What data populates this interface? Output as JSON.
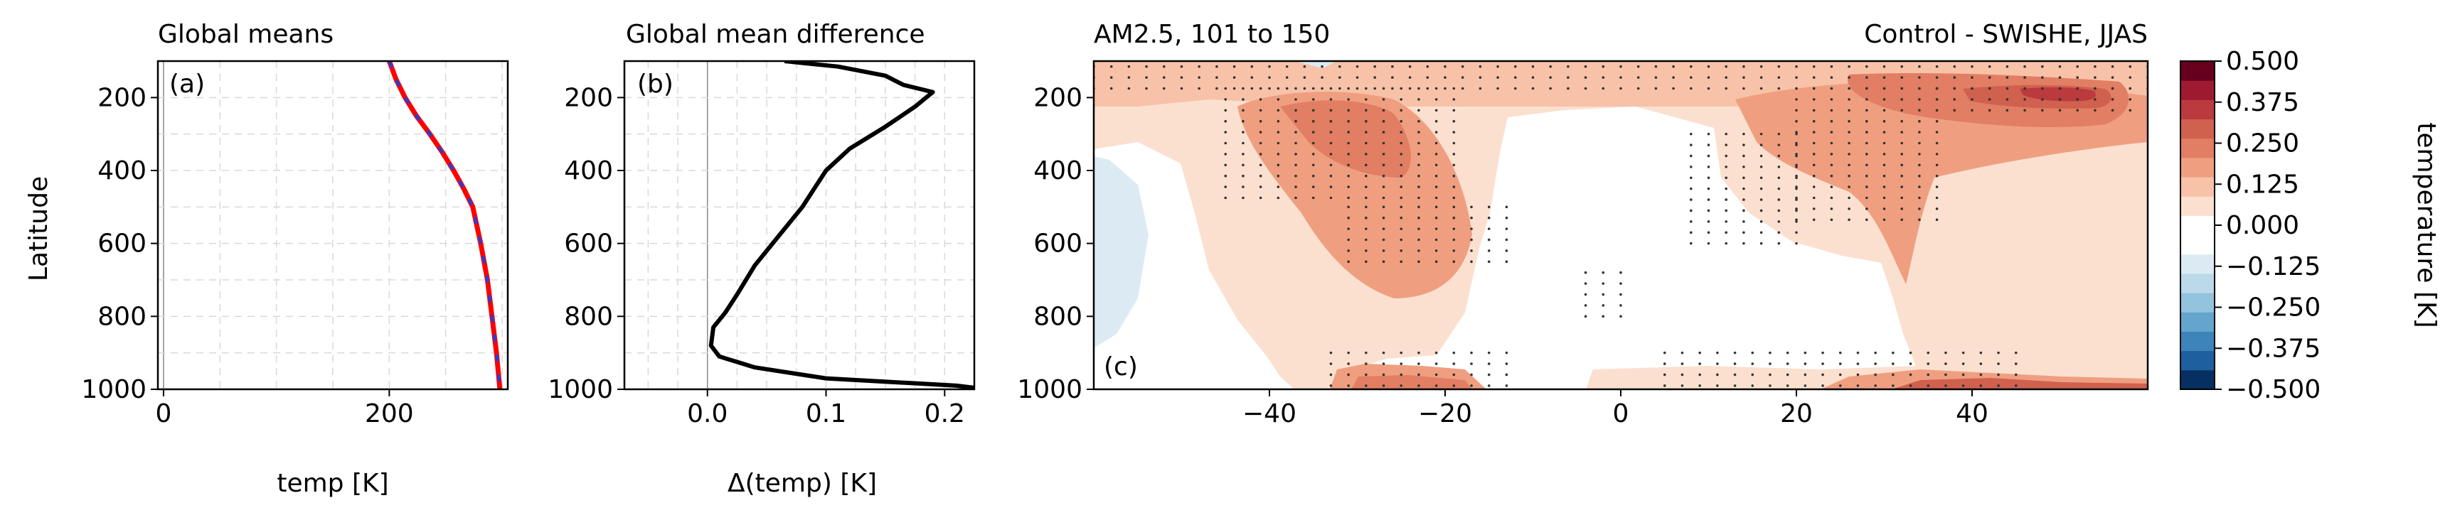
{
  "figure": {
    "panels": [
      "(a)",
      "(b)",
      "(c)"
    ]
  },
  "chart_data": [
    {
      "type": "line",
      "panel_label": "(a)",
      "title": "Global means",
      "xlabel": "temp [K]",
      "ylabel": "Latitude",
      "xlim": [
        -5,
        305
      ],
      "ylim": [
        1000,
        100
      ],
      "y_inverted": true,
      "xticks": [
        0,
        200
      ],
      "yticks": [
        200,
        400,
        600,
        800,
        1000
      ],
      "grid": true,
      "colors": {
        "line_a": "#ff0000",
        "line_b": "#2040e0"
      },
      "series": [
        {
          "style": "solid-red",
          "x": [
            200,
            206,
            214,
            224,
            236,
            247,
            257,
            266,
            274,
            281,
            287,
            291,
            295,
            298
          ],
          "y": [
            100,
            150,
            200,
            250,
            300,
            350,
            400,
            450,
            500,
            600,
            700,
            800,
            900,
            1000
          ]
        },
        {
          "style": "dashed-blue",
          "x": [
            200,
            206,
            214,
            224,
            236,
            247,
            257,
            266,
            274,
            281,
            287,
            291,
            295,
            298
          ],
          "y": [
            100,
            150,
            200,
            250,
            300,
            350,
            400,
            450,
            500,
            600,
            700,
            800,
            900,
            1000
          ]
        }
      ]
    },
    {
      "type": "line",
      "panel_label": "(b)",
      "title": "Global mean difference",
      "xlabel": "Δ(temp) [K]",
      "xlim": [
        -0.07,
        0.225
      ],
      "ylim": [
        1000,
        100
      ],
      "y_inverted": true,
      "xticks": [
        "0.0",
        "0.1",
        "0.2"
      ],
      "xtick_values": [
        0.0,
        0.1,
        0.2
      ],
      "yticks": [
        200,
        400,
        600,
        800,
        1000
      ],
      "grid": true,
      "colors": {
        "line": "#000000"
      },
      "series": [
        {
          "x": [
            0.065,
            0.11,
            0.15,
            0.165,
            0.19,
            0.175,
            0.15,
            0.12,
            0.1,
            0.09,
            0.08,
            0.06,
            0.04,
            0.025,
            0.015,
            0.005,
            0.003,
            0.01,
            0.04,
            0.1,
            0.21,
            0.235
          ],
          "y": [
            100,
            115,
            140,
            165,
            185,
            225,
            280,
            340,
            400,
            450,
            500,
            580,
            660,
            740,
            790,
            830,
            880,
            910,
            940,
            970,
            990,
            1000
          ]
        }
      ]
    },
    {
      "type": "contourf",
      "panel_label": "(c)",
      "title_left": "AM2.5, 101 to 150",
      "title_right": "Control - SWISHE, JJAS",
      "xlim": [
        -60,
        60
      ],
      "ylim": [
        1000,
        100
      ],
      "y_inverted": true,
      "xticks": [
        -40,
        -20,
        0,
        20,
        40
      ],
      "yticks": [
        200,
        400,
        600,
        800,
        1000
      ],
      "stippling": "dots mark significant regions",
      "colorbar": {
        "label": "temperature [K]",
        "ticks": [
          "0.500",
          "0.375",
          "0.250",
          "0.125",
          "0.000",
          "−0.125",
          "−0.250",
          "−0.375",
          "−0.500"
        ],
        "levels": [
          -0.5,
          -0.4375,
          -0.375,
          -0.3125,
          -0.25,
          -0.1875,
          -0.125,
          -0.0625,
          0,
          0.0625,
          0.125,
          0.1875,
          0.25,
          0.3125,
          0.375,
          0.4375,
          0.5
        ],
        "colors": [
          "#053061",
          "#1e5f9f",
          "#3c84b9",
          "#64a5cd",
          "#93c3de",
          "#bcd9ea",
          "#dcebf3",
          "#ffffff",
          "#ffffff",
          "#fbe0d0",
          "#f7c2a8",
          "#ef9f80",
          "#e27e63",
          "#d0614f",
          "#bb3a3e",
          "#9e1a30",
          "#67001f"
        ]
      },
      "regions": [
        {
          "level": 0.08,
          "desc": "upper band",
          "x": [
            -60,
            60
          ],
          "y": [
            110,
            160
          ]
        },
        {
          "level": 0.08,
          "desc": "broad positive west",
          "x": [
            -48,
            -8
          ],
          "y": [
            150,
            880
          ]
        },
        {
          "level": 0.22,
          "desc": "core west",
          "x": [
            -40,
            -18
          ],
          "y": [
            160,
            640
          ]
        },
        {
          "level": 0.3,
          "desc": "core west peak",
          "x": [
            -35,
            -25
          ],
          "y": [
            220,
            390
          ]
        },
        {
          "level": 0.08,
          "desc": "broad positive east",
          "x": [
            8,
            60
          ],
          "y": [
            130,
            850
          ]
        },
        {
          "level": 0.22,
          "desc": "core east",
          "x": [
            20,
            45
          ],
          "y": [
            160,
            600
          ]
        },
        {
          "level": 0.3,
          "desc": "upper east",
          "x": [
            25,
            60
          ],
          "y": [
            150,
            260
          ]
        },
        {
          "level": 0.45,
          "desc": "peak east",
          "x": [
            44,
            55
          ],
          "y": [
            180,
            230
          ]
        },
        {
          "level": -0.07,
          "desc": "negative west",
          "x": [
            -60,
            -55
          ],
          "y": [
            250,
            880
          ]
        },
        {
          "level": 0.3,
          "desc": "surface east",
          "x": [
            0,
            60
          ],
          "y": [
            960,
            1000
          ]
        }
      ]
    }
  ]
}
